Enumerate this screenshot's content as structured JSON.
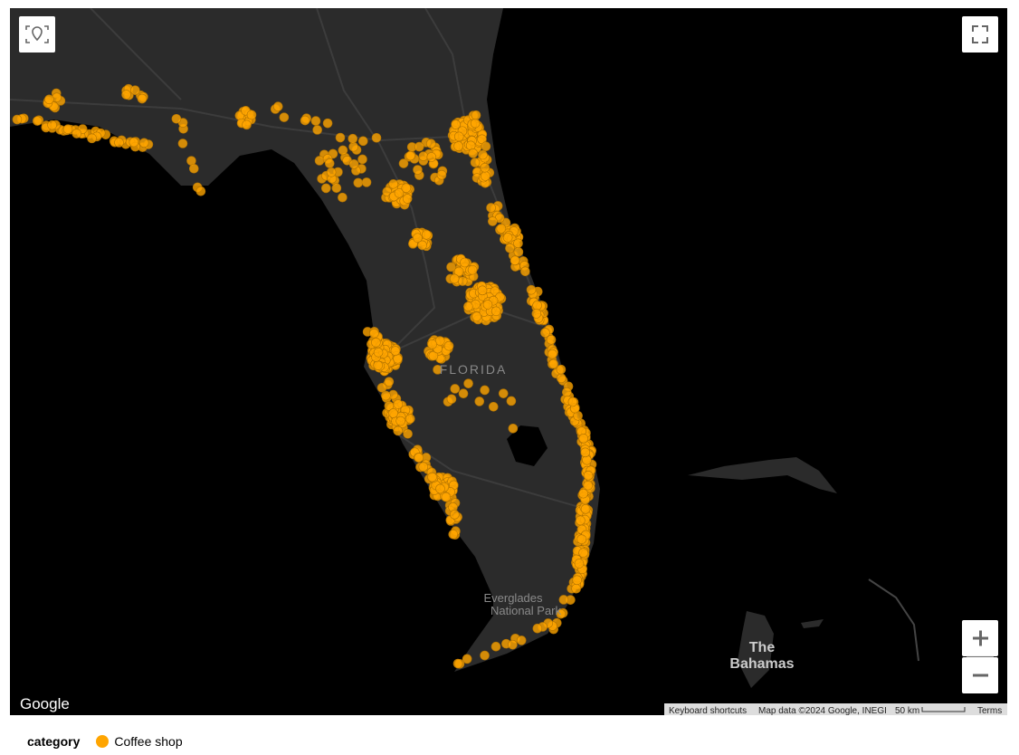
{
  "map": {
    "labels": {
      "state": "FLORIDA",
      "park": [
        "Everglades",
        "National Park"
      ],
      "islands": [
        "The",
        "Bahamas"
      ]
    },
    "logo": "Google",
    "attribution": {
      "shortcuts": "Keyboard shortcuts",
      "data": "Map data ©2024 Google, INEGI",
      "scale": "50 km",
      "terms": "Terms"
    }
  },
  "legend": {
    "title": "category",
    "items": [
      {
        "label": "Coffee shop",
        "color": "#FFA500"
      }
    ]
  }
}
